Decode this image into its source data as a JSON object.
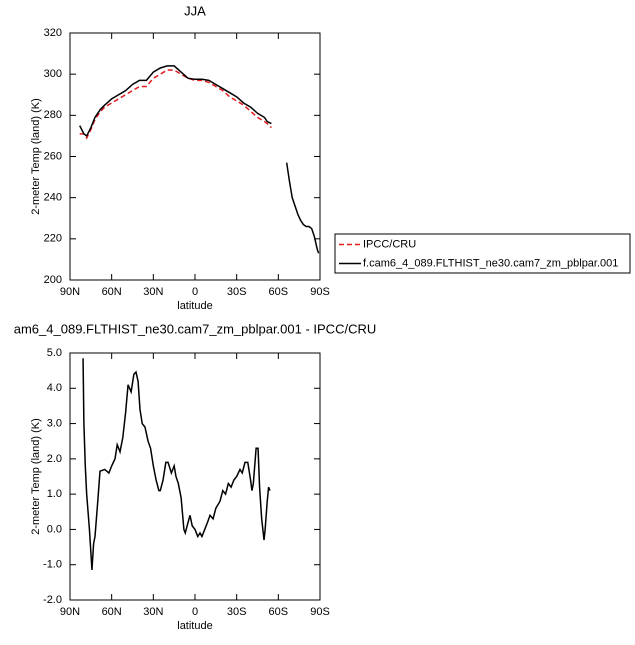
{
  "chart_data": [
    {
      "type": "line",
      "title": "JJA",
      "xlabel": "latitude",
      "ylabel": "2-meter Temp (land) (K)",
      "x": [
        83,
        80,
        78,
        75,
        72,
        68,
        65,
        60,
        55,
        50,
        45,
        40,
        35,
        30,
        25,
        20,
        15,
        10,
        5,
        0,
        -5,
        -10,
        -15,
        -20,
        -25,
        -30,
        -35,
        -40,
        -45,
        -50,
        -52,
        -55,
        -60,
        -66,
        -68,
        -70,
        -72,
        -74,
        -76,
        -78,
        -80,
        -82,
        -84,
        -86,
        -88,
        -89
      ],
      "series": [
        {
          "name": "IPCC/CRU",
          "color": "#e31a1c",
          "linestyle": "dashed",
          "values": [
            271,
            271,
            269,
            273,
            278,
            282,
            284,
            286,
            288,
            290,
            292,
            294,
            294,
            298,
            300,
            302,
            302,
            300,
            298,
            297,
            297,
            296,
            294,
            292,
            289,
            287,
            285,
            282,
            279,
            277,
            276,
            274,
            null,
            null,
            null,
            null,
            null,
            null,
            null,
            null,
            null,
            null,
            null,
            null,
            null,
            null
          ]
        },
        {
          "name": "f.cam6_4_089.FLTHIST_ne30.cam7_zm_pblpar.001",
          "color": "#000000",
          "linestyle": "solid",
          "values": [
            275,
            271,
            270,
            274,
            279,
            283,
            285,
            288,
            290,
            292,
            295,
            297,
            297,
            301,
            303,
            304,
            304,
            301,
            298,
            297.5,
            297.5,
            297,
            295,
            293,
            291,
            289,
            286,
            284,
            281,
            279,
            277,
            276,
            null,
            257,
            248,
            240,
            236,
            232,
            229,
            227,
            226,
            226,
            225,
            221,
            215,
            213
          ]
        }
      ],
      "xlim": [
        90,
        -90
      ],
      "xticks": [
        {
          "value": 90,
          "label": "90N"
        },
        {
          "value": 60,
          "label": "60N"
        },
        {
          "value": 30,
          "label": "30N"
        },
        0,
        {
          "value": -30,
          "label": "30S"
        },
        {
          "value": -60,
          "label": "60S"
        },
        {
          "value": -90,
          "label": "90S"
        }
      ],
      "ylim": [
        200,
        320
      ],
      "yticks": [
        200,
        220,
        240,
        260,
        280,
        300,
        320
      ],
      "grid": false,
      "legend": "right"
    },
    {
      "type": "line",
      "title": "am6_4_089.FLTHIST_ne30.cam7_zm_pblpar.001 - IPCC/CRU",
      "xlabel": "latitude",
      "ylabel": "2-meter Temp (land) (K)",
      "x": [
        80.6,
        80,
        79,
        78,
        76,
        74.2,
        73,
        72,
        70,
        68.4,
        65,
        62,
        60,
        57.6,
        56,
        54,
        52,
        50,
        48.2,
        46,
        44,
        42.5,
        41,
        39.6,
        38,
        36,
        33.8,
        32,
        30,
        28,
        26,
        25,
        23,
        21,
        19.4,
        17,
        15,
        13.7,
        12,
        10,
        8,
        7,
        5,
        3.6,
        2,
        0,
        -2,
        -3.6,
        -5,
        -7,
        -9,
        -10.8,
        -13,
        -15,
        -18,
        -20,
        -22,
        -24,
        -26,
        -28,
        -30,
        -32.4,
        -34,
        -36,
        -38,
        -40,
        -41,
        -42,
        -44,
        -45.4,
        -46.5,
        -48,
        -49.7,
        -50.5,
        -52,
        -53,
        -54
      ],
      "series": [
        {
          "color": "#000000",
          "linestyle": "solid",
          "values": [
            4.85,
            3.0,
            1.8,
            1.0,
            0.0,
            -1.15,
            -0.4,
            -0.2,
            0.8,
            1.65,
            1.7,
            1.6,
            1.8,
            2.0,
            2.4,
            2.2,
            2.6,
            3.3,
            4.1,
            3.9,
            4.4,
            4.46,
            4.2,
            3.4,
            3.0,
            2.9,
            2.5,
            2.3,
            1.8,
            1.4,
            1.1,
            1.1,
            1.4,
            1.9,
            1.9,
            1.6,
            1.8,
            1.5,
            1.3,
            0.9,
            0.0,
            -0.1,
            0.2,
            0.4,
            0.1,
            0.0,
            -0.2,
            -0.1,
            -0.2,
            0.0,
            0.2,
            0.4,
            0.3,
            0.6,
            0.8,
            1.1,
            1.0,
            1.3,
            1.2,
            1.4,
            1.5,
            1.7,
            1.6,
            1.9,
            1.9,
            1.4,
            1.1,
            1.3,
            2.3,
            2.3,
            1.2,
            0.3,
            -0.3,
            0.0,
            0.8,
            1.2,
            1.1
          ]
        }
      ],
      "xlim": [
        90,
        -90
      ],
      "xticks": [
        {
          "value": 90,
          "label": "90N"
        },
        {
          "value": 60,
          "label": "60N"
        },
        {
          "value": 30,
          "label": "30N"
        },
        0,
        {
          "value": -30,
          "label": "30S"
        },
        {
          "value": -60,
          "label": "60S"
        },
        {
          "value": -90,
          "label": "90S"
        }
      ],
      "ylim": [
        -2,
        5
      ],
      "yticks": [
        {
          "value": -2,
          "label": "-2.0"
        },
        {
          "value": -1,
          "label": "-1.0"
        },
        {
          "value": 0,
          "label": "0.0"
        },
        {
          "value": 1,
          "label": "1.0"
        },
        {
          "value": 2,
          "label": "2.0"
        },
        {
          "value": 3,
          "label": "3.0"
        },
        {
          "value": 4,
          "label": "4.0"
        },
        {
          "value": 5,
          "label": "5.0"
        }
      ],
      "grid": false
    }
  ]
}
